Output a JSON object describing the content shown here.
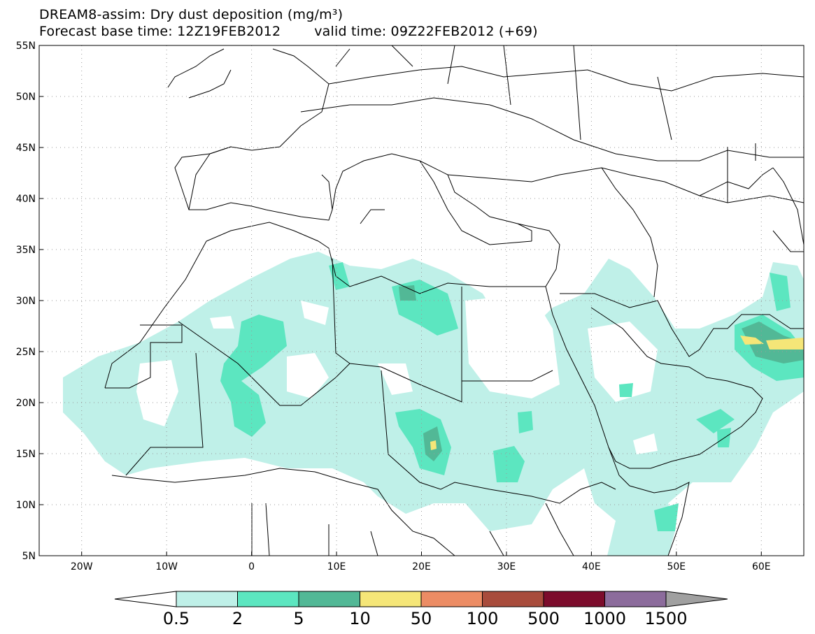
{
  "title": {
    "line1": "DREAM8-assim: Dry dust deposition (mg/m³)",
    "base_time": "Forecast base time: 12Z19FEB2012",
    "valid_time": "valid time: 09Z22FEB2012 (+69)"
  },
  "map": {
    "lat_labels": [
      "55N",
      "50N",
      "45N",
      "40N",
      "35N",
      "30N",
      "25N",
      "20N",
      "15N",
      "10N",
      "5N"
    ],
    "lat_values": [
      55,
      50,
      45,
      40,
      35,
      30,
      25,
      20,
      15,
      10,
      5
    ],
    "lon_labels": [
      "20W",
      "10W",
      "0",
      "10E",
      "20E",
      "30E",
      "40E",
      "50E",
      "60E"
    ],
    "lon_values": [
      -20,
      -10,
      0,
      10,
      20,
      30,
      40,
      50,
      60
    ],
    "lon_range": [
      -25,
      65
    ],
    "lat_range": [
      5,
      55
    ],
    "gridlines": "dotted"
  },
  "colorbar": {
    "labels": [
      "0.5",
      "2",
      "5",
      "10",
      "50",
      "100",
      "500",
      "1000",
      "1500"
    ],
    "colors": [
      "#ffffff",
      "#bff0e8",
      "#5ce6c0",
      "#52b896",
      "#f5e678",
      "#ec8c64",
      "#a84c3c",
      "#7c0c2c",
      "#8c6c9c",
      "#a0a0a0"
    ]
  }
}
